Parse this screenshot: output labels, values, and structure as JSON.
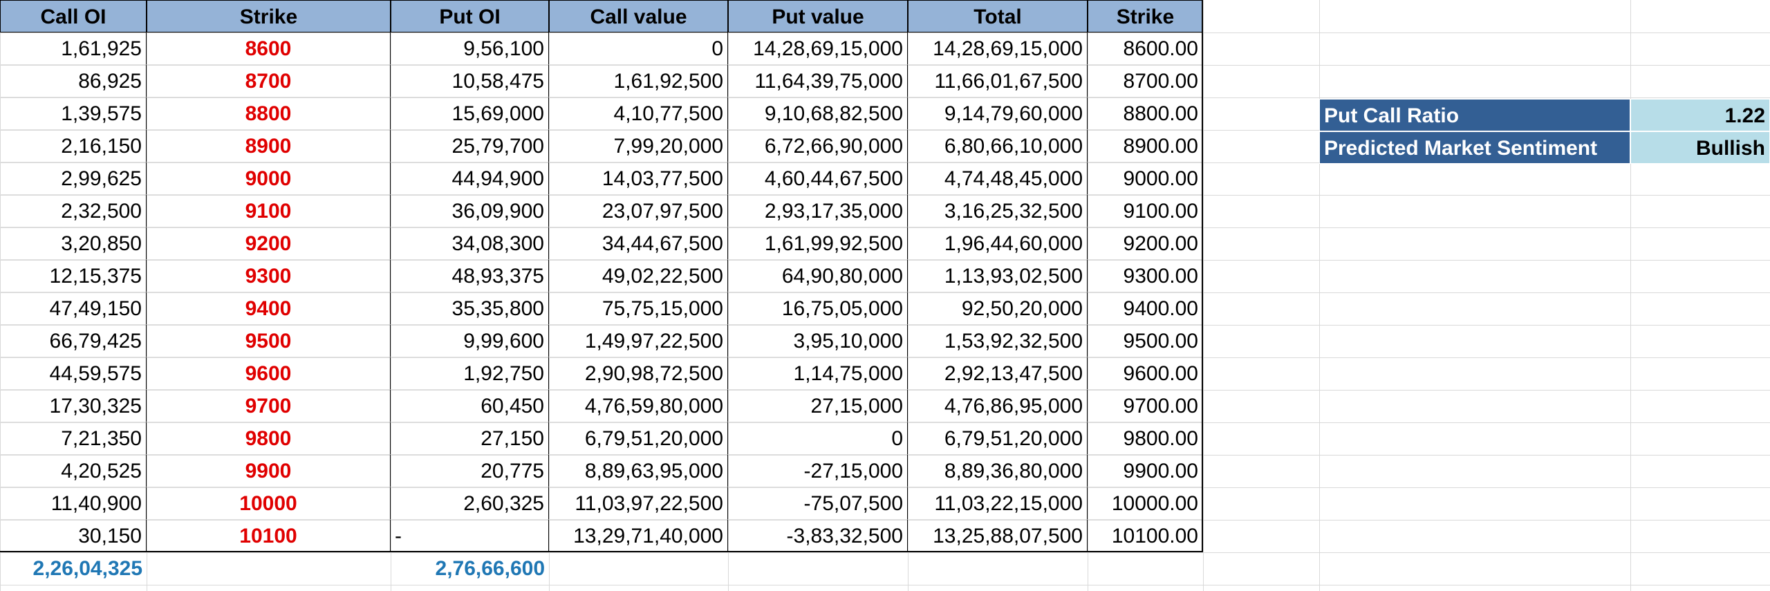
{
  "table": {
    "headers": [
      "Call OI",
      "Strike",
      "Put OI",
      "Call value",
      "Put value",
      "Total",
      "Strike"
    ],
    "rows": [
      {
        "call_oi": "1,61,925",
        "strike": "8600",
        "put_oi": "9,56,100",
        "call_value": "0",
        "put_value": "14,28,69,15,000",
        "total": "14,28,69,15,000",
        "strike2": "8600.00"
      },
      {
        "call_oi": "86,925",
        "strike": "8700",
        "put_oi": "10,58,475",
        "call_value": "1,61,92,500",
        "put_value": "11,64,39,75,000",
        "total": "11,66,01,67,500",
        "strike2": "8700.00"
      },
      {
        "call_oi": "1,39,575",
        "strike": "8800",
        "put_oi": "15,69,000",
        "call_value": "4,10,77,500",
        "put_value": "9,10,68,82,500",
        "total": "9,14,79,60,000",
        "strike2": "8800.00"
      },
      {
        "call_oi": "2,16,150",
        "strike": "8900",
        "put_oi": "25,79,700",
        "call_value": "7,99,20,000",
        "put_value": "6,72,66,90,000",
        "total": "6,80,66,10,000",
        "strike2": "8900.00"
      },
      {
        "call_oi": "2,99,625",
        "strike": "9000",
        "put_oi": "44,94,900",
        "call_value": "14,03,77,500",
        "put_value": "4,60,44,67,500",
        "total": "4,74,48,45,000",
        "strike2": "9000.00"
      },
      {
        "call_oi": "2,32,500",
        "strike": "9100",
        "put_oi": "36,09,900",
        "call_value": "23,07,97,500",
        "put_value": "2,93,17,35,000",
        "total": "3,16,25,32,500",
        "strike2": "9100.00"
      },
      {
        "call_oi": "3,20,850",
        "strike": "9200",
        "put_oi": "34,08,300",
        "call_value": "34,44,67,500",
        "put_value": "1,61,99,92,500",
        "total": "1,96,44,60,000",
        "strike2": "9200.00"
      },
      {
        "call_oi": "12,15,375",
        "strike": "9300",
        "put_oi": "48,93,375",
        "call_value": "49,02,22,500",
        "put_value": "64,90,80,000",
        "total": "1,13,93,02,500",
        "strike2": "9300.00"
      },
      {
        "call_oi": "47,49,150",
        "strike": "9400",
        "put_oi": "35,35,800",
        "call_value": "75,75,15,000",
        "put_value": "16,75,05,000",
        "total": "92,50,20,000",
        "strike2": "9400.00"
      },
      {
        "call_oi": "66,79,425",
        "strike": "9500",
        "put_oi": "9,99,600",
        "call_value": "1,49,97,22,500",
        "put_value": "3,95,10,000",
        "total": "1,53,92,32,500",
        "strike2": "9500.00"
      },
      {
        "call_oi": "44,59,575",
        "strike": "9600",
        "put_oi": "1,92,750",
        "call_value": "2,90,98,72,500",
        "put_value": "1,14,75,000",
        "total": "2,92,13,47,500",
        "strike2": "9600.00"
      },
      {
        "call_oi": "17,30,325",
        "strike": "9700",
        "put_oi": "60,450",
        "call_value": "4,76,59,80,000",
        "put_value": "27,15,000",
        "total": "4,76,86,95,000",
        "strike2": "9700.00"
      },
      {
        "call_oi": "7,21,350",
        "strike": "9800",
        "put_oi": "27,150",
        "call_value": "6,79,51,20,000",
        "put_value": "0",
        "total": "6,79,51,20,000",
        "strike2": "9800.00"
      },
      {
        "call_oi": "4,20,525",
        "strike": "9900",
        "put_oi": "20,775",
        "call_value": "8,89,63,95,000",
        "put_value": "-27,15,000",
        "total": "8,89,36,80,000",
        "strike2": "9900.00"
      },
      {
        "call_oi": "11,40,900",
        "strike": "10000",
        "put_oi": "2,60,325",
        "call_value": "11,03,97,22,500",
        "put_value": "-75,07,500",
        "total": "11,03,22,15,000",
        "strike2": "10000.00"
      },
      {
        "call_oi": "30,150",
        "strike": "10100",
        "put_oi": "-",
        "call_value": "13,29,71,40,000",
        "put_value": "-3,83,32,500",
        "total": "13,25,88,07,500",
        "strike2": "10100.00"
      }
    ],
    "totals": {
      "call_oi": "2,26,04,325",
      "put_oi": "2,76,66,600"
    }
  },
  "summary": {
    "pcr_label": "Put Call Ratio",
    "pcr_value": "1.22",
    "sentiment_label": "Predicted Market Sentiment",
    "sentiment_value": "Bullish"
  },
  "colors": {
    "header_bg": "#95b3d7",
    "strike_red": "#e00000",
    "total_blue": "#1f77b4",
    "side_label_bg": "#335f94",
    "side_value_bg": "#b7dde8"
  }
}
